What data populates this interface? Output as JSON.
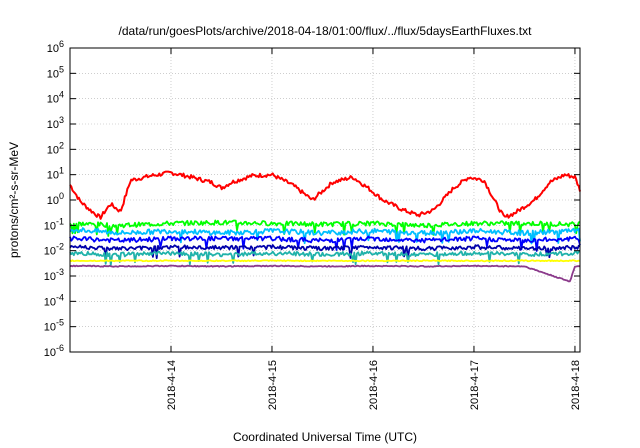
{
  "chart_data": {
    "type": "line",
    "title": "/data/run/goesPlots/archive/2018-04-18/01:00/flux/../flux/5daysEarthFluxes.txt",
    "xlabel": "Coordinated Universal Time (UTC)",
    "ylabel": "protons/cm²-s-sr-MeV",
    "yscale": "log",
    "ylim": [
      1e-06,
      1000000.0
    ],
    "xlim": [
      0,
      5.05
    ],
    "y_ticks": [
      {
        "base": "10",
        "exp": "6"
      },
      {
        "base": "10",
        "exp": "5"
      },
      {
        "base": "10",
        "exp": "4"
      },
      {
        "base": "10",
        "exp": "3"
      },
      {
        "base": "10",
        "exp": "2"
      },
      {
        "base": "10",
        "exp": "1"
      },
      {
        "base": "10",
        "exp": "0"
      },
      {
        "base": "10",
        "exp": "-1"
      },
      {
        "base": "10",
        "exp": "-2"
      },
      {
        "base": "10",
        "exp": "-3"
      },
      {
        "base": "10",
        "exp": "-4"
      },
      {
        "base": "10",
        "exp": "-5"
      },
      {
        "base": "10",
        "exp": "-6"
      }
    ],
    "x_ticks": [
      "2018-4-14",
      "2018-4-15",
      "2018-4-16",
      "2018-4-17",
      "2018-4-18"
    ],
    "x_tick_positions_days": [
      1,
      2,
      3,
      4,
      5
    ],
    "grid": true,
    "series": [
      {
        "color": "#ff0000",
        "x": [
          0,
          0.1,
          0.2,
          0.3,
          0.4,
          0.5,
          0.6,
          0.8,
          1.0,
          1.2,
          1.4,
          1.5,
          1.6,
          1.8,
          2.0,
          2.2,
          2.4,
          2.6,
          2.8,
          2.95,
          3.1,
          3.3,
          3.45,
          3.6,
          3.8,
          3.95,
          4.1,
          4.2,
          4.3,
          4.4,
          4.6,
          4.75,
          4.9,
          5.0,
          5.05
        ],
        "values": [
          4,
          0.9,
          0.4,
          0.2,
          0.7,
          0.35,
          6,
          9,
          12,
          8,
          5,
          3,
          5,
          9,
          10,
          4,
          1,
          5,
          8,
          3,
          1,
          0.4,
          0.25,
          0.4,
          3,
          8,
          6,
          1,
          0.2,
          0.3,
          1,
          5,
          10,
          8,
          2.5
        ]
      },
      {
        "color": "#00ff00",
        "x": [
          0,
          0.5,
          1,
          1.5,
          2,
          2.5,
          3,
          3.5,
          4,
          4.5,
          5,
          5.05
        ],
        "values": [
          0.12,
          0.1,
          0.12,
          0.13,
          0.12,
          0.11,
          0.12,
          0.1,
          0.12,
          0.12,
          0.11,
          0.12
        ]
      },
      {
        "color": "#00bfff",
        "x": [
          0,
          0.5,
          1,
          1.5,
          2,
          2.5,
          3,
          3.5,
          4,
          4.5,
          5,
          5.05
        ],
        "values": [
          0.07,
          0.05,
          0.06,
          0.05,
          0.06,
          0.05,
          0.06,
          0.05,
          0.06,
          0.05,
          0.06,
          0.06
        ]
      },
      {
        "color": "#0000ff",
        "x": [
          0,
          0.5,
          1,
          1.5,
          2,
          2.5,
          3,
          3.5,
          4,
          4.5,
          5,
          5.05
        ],
        "values": [
          0.03,
          0.025,
          0.03,
          0.03,
          0.03,
          0.025,
          0.03,
          0.025,
          0.03,
          0.025,
          0.03,
          0.03
        ]
      },
      {
        "color": "#0000aa",
        "x": [
          0,
          0.5,
          1,
          1.5,
          2,
          2.5,
          3,
          3.5,
          4,
          4.5,
          5,
          5.05
        ],
        "values": [
          0.015,
          0.012,
          0.014,
          0.013,
          0.014,
          0.012,
          0.014,
          0.012,
          0.014,
          0.012,
          0.013,
          0.014
        ]
      },
      {
        "color": "#20b2aa",
        "x": [
          0,
          0.5,
          1,
          1.5,
          2,
          2.5,
          3,
          3.5,
          4,
          4.5,
          5,
          5.05
        ],
        "values": [
          0.008,
          0.007,
          0.008,
          0.007,
          0.008,
          0.007,
          0.008,
          0.007,
          0.008,
          0.007,
          0.008,
          0.008
        ]
      },
      {
        "color": "#ffff00",
        "x": [
          0,
          0.5,
          1,
          1.5,
          2,
          2.5,
          3,
          3.5,
          4,
          4.5,
          5,
          5.05
        ],
        "values": [
          0.004,
          0.004,
          0.004,
          0.004,
          0.004,
          0.004,
          0.004,
          0.004,
          0.004,
          0.004,
          0.004,
          0.004
        ]
      },
      {
        "color": "#8b3a8b",
        "x": [
          0,
          0.5,
          1,
          1.5,
          2,
          2.5,
          3,
          3.5,
          4,
          4.5,
          4.95,
          5,
          5.05
        ],
        "values": [
          0.0025,
          0.0024,
          0.0025,
          0.0024,
          0.0025,
          0.0024,
          0.0025,
          0.0024,
          0.0025,
          0.0024,
          0.0006,
          0.0024,
          0.0025
        ]
      }
    ]
  }
}
